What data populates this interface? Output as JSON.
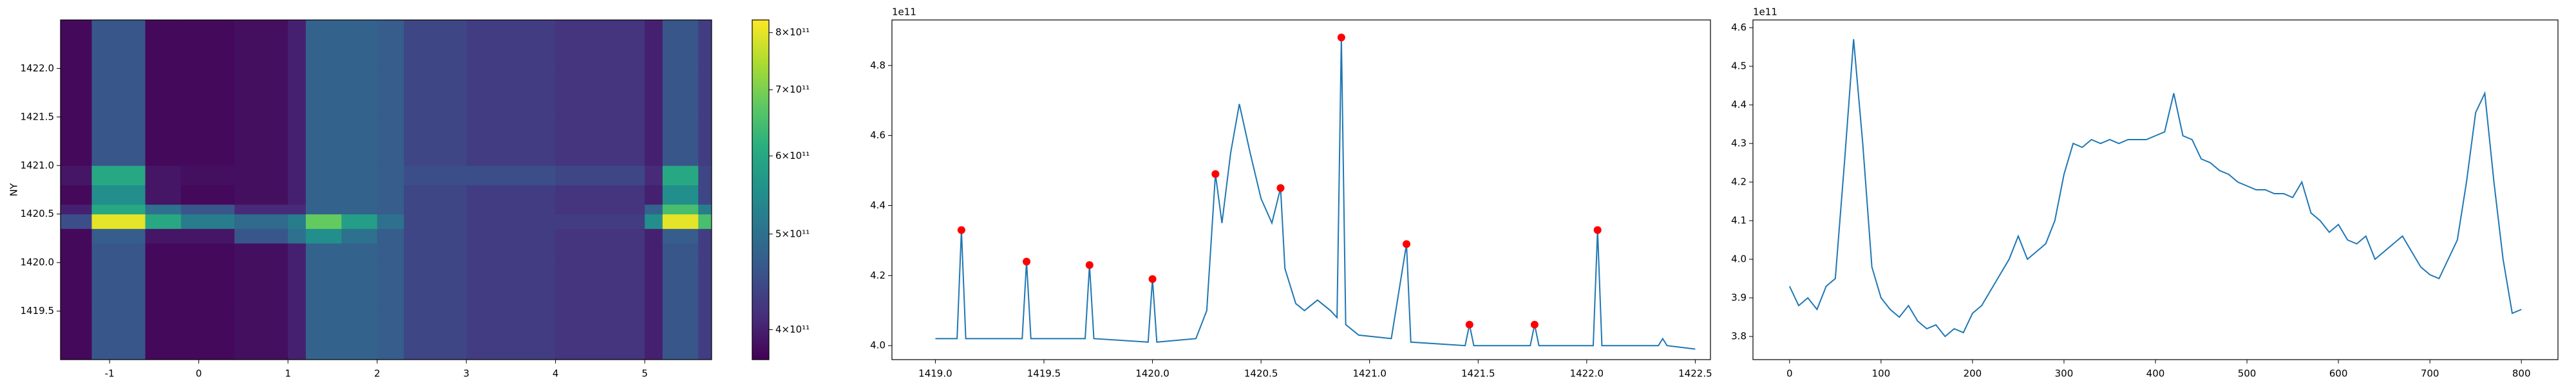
{
  "chart_data": [
    {
      "type": "heatmap",
      "ylabel": "NY",
      "xlim": [
        -1.55,
        5.75
      ],
      "ylim": [
        1419.0,
        1422.5
      ],
      "xticks": [
        -1,
        0,
        1,
        2,
        3,
        4,
        5
      ],
      "yticks": [
        1419.5,
        {
          "value": 1420,
          "label": "1420.0"
        },
        1420.5,
        {
          "value": 1421,
          "label": "1421.0"
        },
        1421.5,
        {
          "value": 1422,
          "label": "1422.0"
        }
      ],
      "x_edges": [
        -1.55,
        -1.2,
        -0.6,
        -0.2,
        0.4,
        1.0,
        1.2,
        1.6,
        2.0,
        2.3,
        3.0,
        4.0,
        5.0,
        5.2,
        5.6,
        5.75
      ],
      "y_edges": [
        1419.0,
        1419.5,
        1420.0,
        1420.2,
        1420.35,
        1420.5,
        1420.6,
        1420.8,
        1421.0,
        1421.5,
        1422.0,
        1422.5
      ],
      "z": [
        [
          380000000000.0,
          460000000000.0,
          380000000000.0,
          380000000000.0,
          385000000000.0,
          400000000000.0,
          480000000000.0,
          480000000000.0,
          470000000000.0,
          440000000000.0,
          430000000000.0,
          420000000000.0,
          400000000000.0,
          460000000000.0,
          430000000000.0
        ],
        [
          380000000000.0,
          460000000000.0,
          380000000000.0,
          380000000000.0,
          385000000000.0,
          400000000000.0,
          480000000000.0,
          480000000000.0,
          470000000000.0,
          440000000000.0,
          430000000000.0,
          420000000000.0,
          400000000000.0,
          460000000000.0,
          430000000000.0
        ],
        [
          380000000000.0,
          460000000000.0,
          380000000000.0,
          380000000000.0,
          385000000000.0,
          400000000000.0,
          480000000000.0,
          480000000000.0,
          470000000000.0,
          440000000000.0,
          430000000000.0,
          420000000000.0,
          400000000000.0,
          460000000000.0,
          430000000000.0
        ],
        [
          380000000000.0,
          470000000000.0,
          390000000000.0,
          390000000000.0,
          460000000000.0,
          500000000000.0,
          550000000000.0,
          500000000000.0,
          470000000000.0,
          440000000000.0,
          430000000000.0,
          420000000000.0,
          400000000000.0,
          470000000000.0,
          430000000000.0
        ],
        [
          450000000000.0,
          800000000000.0,
          600000000000.0,
          520000000000.0,
          490000000000.0,
          520000000000.0,
          680000000000.0,
          580000000000.0,
          500000000000.0,
          440000000000.0,
          430000000000.0,
          430000000000.0,
          550000000000.0,
          800000000000.0,
          650000000000.0
        ],
        [
          400000000000.0,
          600000000000.0,
          500000000000.0,
          460000000000.0,
          410000000000.0,
          410000000000.0,
          480000000000.0,
          480000000000.0,
          470000000000.0,
          440000000000.0,
          430000000000.0,
          420000000000.0,
          480000000000.0,
          650000000000.0,
          520000000000.0
        ],
        [
          380000000000.0,
          550000000000.0,
          390000000000.0,
          380000000000.0,
          385000000000.0,
          400000000000.0,
          480000000000.0,
          480000000000.0,
          470000000000.0,
          440000000000.0,
          430000000000.0,
          420000000000.0,
          400000000000.0,
          550000000000.0,
          440000000000.0
        ],
        [
          390000000000.0,
          600000000000.0,
          390000000000.0,
          385000000000.0,
          385000000000.0,
          400000000000.0,
          480000000000.0,
          480000000000.0,
          470000000000.0,
          450000000000.0,
          450000000000.0,
          440000000000.0,
          410000000000.0,
          600000000000.0,
          440000000000.0
        ],
        [
          380000000000.0,
          460000000000.0,
          380000000000.0,
          380000000000.0,
          385000000000.0,
          400000000000.0,
          480000000000.0,
          480000000000.0,
          470000000000.0,
          440000000000.0,
          430000000000.0,
          420000000000.0,
          400000000000.0,
          460000000000.0,
          430000000000.0
        ],
        [
          380000000000.0,
          460000000000.0,
          380000000000.0,
          380000000000.0,
          385000000000.0,
          400000000000.0,
          480000000000.0,
          480000000000.0,
          470000000000.0,
          440000000000.0,
          430000000000.0,
          420000000000.0,
          400000000000.0,
          460000000000.0,
          430000000000.0
        ],
        [
          380000000000.0,
          460000000000.0,
          380000000000.0,
          380000000000.0,
          385000000000.0,
          400000000000.0,
          480000000000.0,
          480000000000.0,
          470000000000.0,
          440000000000.0,
          430000000000.0,
          420000000000.0,
          400000000000.0,
          460000000000.0,
          430000000000.0
        ]
      ],
      "colormap": "viridis",
      "color_scale": "log",
      "clim": [
        373000000000.0,
        824000000000.0
      ],
      "colorbar_ticks": [
        {
          "value": 400000000000.0,
          "label": "4×10¹¹"
        },
        {
          "value": 500000000000.0,
          "label": "5×10¹¹"
        },
        {
          "value": 600000000000.0,
          "label": "6×10¹¹"
        },
        {
          "value": 700000000000.0,
          "label": "7×10¹¹"
        },
        {
          "value": 800000000000.0,
          "label": "8×10¹¹"
        }
      ]
    },
    {
      "type": "line",
      "offset_label": "1e11",
      "xlim": [
        1418.8,
        1422.57
      ],
      "ylim": [
        3.96,
        4.93
      ],
      "xticks": [
        {
          "value": 1419,
          "label": "1419.0"
        },
        1419.5,
        {
          "value": 1420,
          "label": "1420.0"
        },
        1420.5,
        {
          "value": 1421,
          "label": "1421.0"
        },
        1421.5,
        {
          "value": 1422,
          "label": "1422.0"
        },
        1422.5
      ],
      "yticks": [
        {
          "value": 4,
          "label": "4.0"
        },
        4.2,
        4.4,
        4.6,
        4.8
      ],
      "series": [
        {
          "color": "#1f77b4",
          "x": [
            1419.0,
            1419.1,
            1419.12,
            1419.14,
            1419.4,
            1419.42,
            1419.44,
            1419.69,
            1419.71,
            1419.73,
            1419.98,
            1420.0,
            1420.02,
            1420.2,
            1420.25,
            1420.29,
            1420.32,
            1420.36,
            1420.4,
            1420.45,
            1420.5,
            1420.55,
            1420.59,
            1420.61,
            1420.66,
            1420.7,
            1420.76,
            1420.82,
            1420.85,
            1420.87,
            1420.89,
            1420.95,
            1421.1,
            1421.17,
            1421.19,
            1421.44,
            1421.46,
            1421.48,
            1421.74,
            1421.76,
            1421.78,
            1422.03,
            1422.05,
            1422.07,
            1422.33,
            1422.35,
            1422.37,
            1422.5
          ],
          "values": [
            4.02,
            4.02,
            4.33,
            4.02,
            4.02,
            4.24,
            4.02,
            4.02,
            4.23,
            4.02,
            4.01,
            4.19,
            4.01,
            4.02,
            4.1,
            4.49,
            4.35,
            4.55,
            4.69,
            4.55,
            4.42,
            4.35,
            4.45,
            4.22,
            4.12,
            4.1,
            4.13,
            4.1,
            4.08,
            4.88,
            4.06,
            4.03,
            4.02,
            4.29,
            4.01,
            4.0,
            4.06,
            4.0,
            4.0,
            4.06,
            4.0,
            4.0,
            4.33,
            4.0,
            4.0,
            4.02,
            4.0,
            3.99
          ]
        }
      ],
      "markers": {
        "color": "#ff0000",
        "x": [
          1419.12,
          1419.42,
          1419.71,
          1420.0,
          1420.29,
          1420.59,
          1420.87,
          1421.17,
          1421.46,
          1421.76,
          1422.05
        ],
        "values": [
          4.33,
          4.24,
          4.23,
          4.19,
          4.49,
          4.45,
          4.88,
          4.29,
          4.06,
          4.06,
          4.33
        ]
      }
    },
    {
      "type": "line",
      "offset_label": "1e11",
      "xlim": [
        -40,
        840
      ],
      "ylim": [
        3.74,
        4.62
      ],
      "xticks": [
        0,
        100,
        200,
        300,
        400,
        500,
        600,
        700,
        800
      ],
      "yticks": [
        3.8,
        3.9,
        {
          "value": 4,
          "label": "4.0"
        },
        4.1,
        4.2,
        4.3,
        4.4,
        4.5,
        4.6
      ],
      "series": [
        {
          "color": "#1f77b4",
          "x": [
            0,
            10,
            20,
            30,
            40,
            50,
            60,
            70,
            80,
            90,
            100,
            110,
            120,
            130,
            140,
            150,
            160,
            170,
            180,
            190,
            200,
            210,
            220,
            230,
            240,
            250,
            260,
            270,
            280,
            290,
            300,
            310,
            320,
            330,
            340,
            350,
            360,
            370,
            380,
            390,
            400,
            410,
            420,
            430,
            440,
            450,
            460,
            470,
            480,
            490,
            500,
            510,
            520,
            530,
            540,
            550,
            560,
            570,
            580,
            590,
            600,
            610,
            620,
            630,
            640,
            650,
            660,
            670,
            680,
            690,
            700,
            710,
            720,
            730,
            740,
            750,
            760,
            770,
            780,
            790,
            800
          ],
          "values": [
            3.93,
            3.88,
            3.9,
            3.87,
            3.93,
            3.95,
            4.25,
            4.57,
            4.3,
            3.98,
            3.9,
            3.87,
            3.85,
            3.88,
            3.84,
            3.82,
            3.83,
            3.8,
            3.82,
            3.81,
            3.86,
            3.88,
            3.92,
            3.96,
            4.0,
            4.06,
            4.0,
            4.02,
            4.04,
            4.1,
            4.22,
            4.3,
            4.29,
            4.31,
            4.3,
            4.31,
            4.3,
            4.31,
            4.31,
            4.31,
            4.32,
            4.33,
            4.43,
            4.32,
            4.31,
            4.26,
            4.25,
            4.23,
            4.22,
            4.2,
            4.19,
            4.18,
            4.18,
            4.17,
            4.17,
            4.16,
            4.2,
            4.12,
            4.1,
            4.07,
            4.09,
            4.05,
            4.04,
            4.06,
            4.0,
            4.02,
            4.04,
            4.06,
            4.02,
            3.98,
            3.96,
            3.95,
            4.0,
            4.05,
            4.2,
            4.38,
            4.43,
            4.2,
            4.0,
            3.86,
            3.87
          ]
        }
      ]
    }
  ]
}
